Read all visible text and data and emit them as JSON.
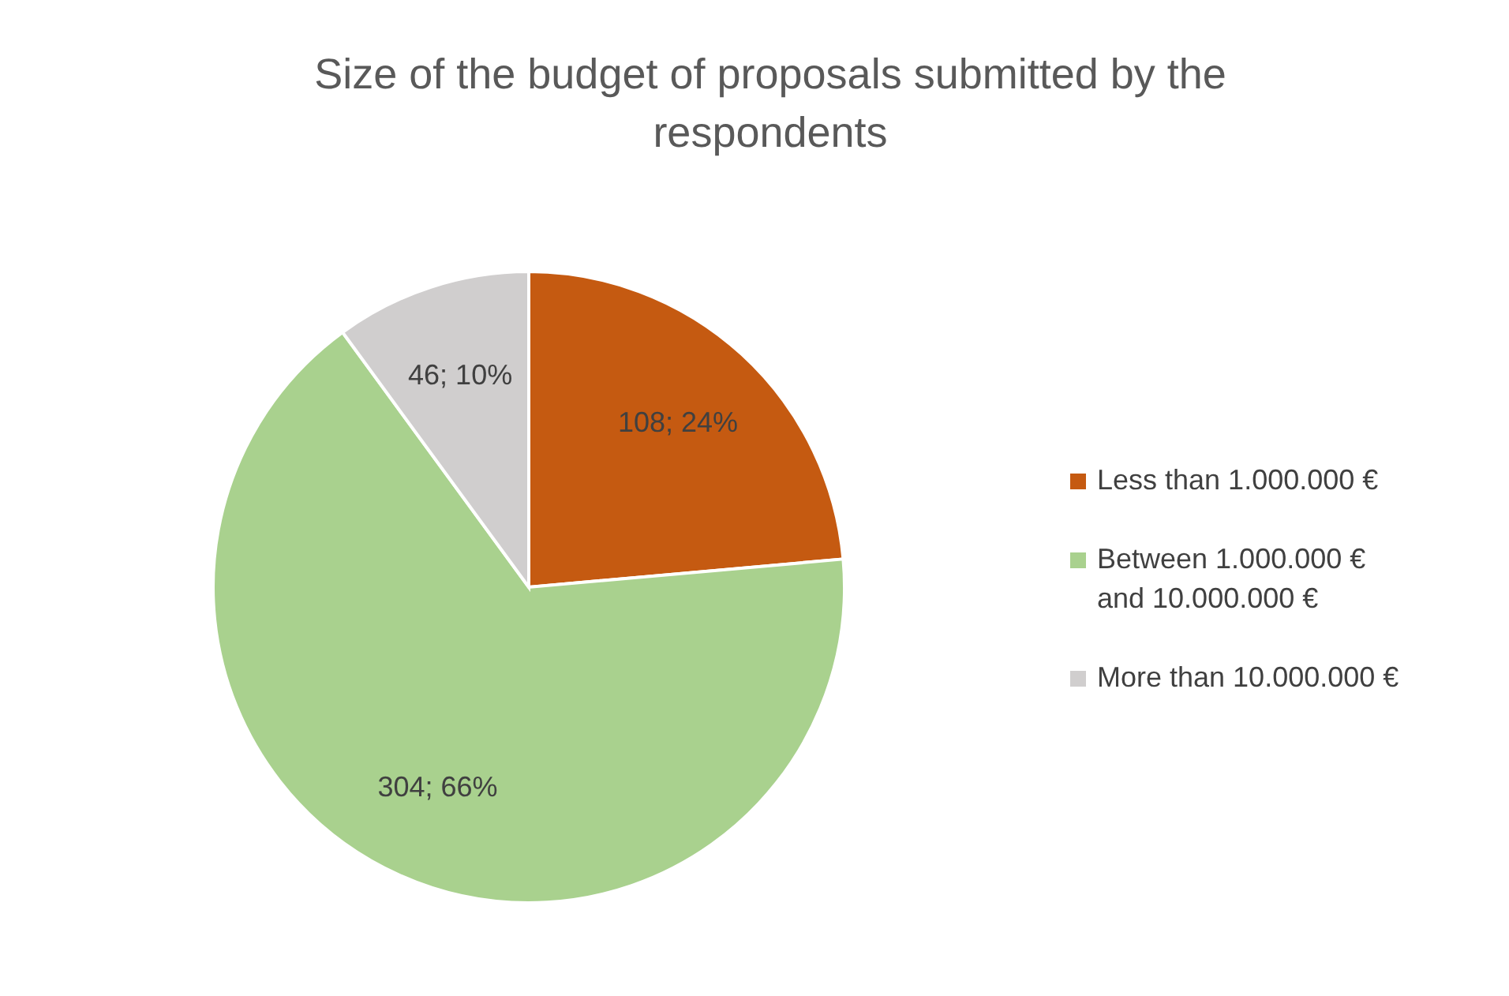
{
  "chart_data": {
    "type": "pie",
    "title": "Size of the budget of proposals submitted by the respondents",
    "categories": [
      "Less than 1.000.000 €",
      "Between 1.000.000 € and 10.000.000 €",
      "More than 10.000.000 €"
    ],
    "values": [
      108,
      304,
      46
    ],
    "colors": [
      "#c55a11",
      "#a9d18e",
      "#d0cece"
    ],
    "value_labels": [
      "108; 24%",
      "304; 66%",
      "46; 10%"
    ],
    "legend": "right"
  }
}
